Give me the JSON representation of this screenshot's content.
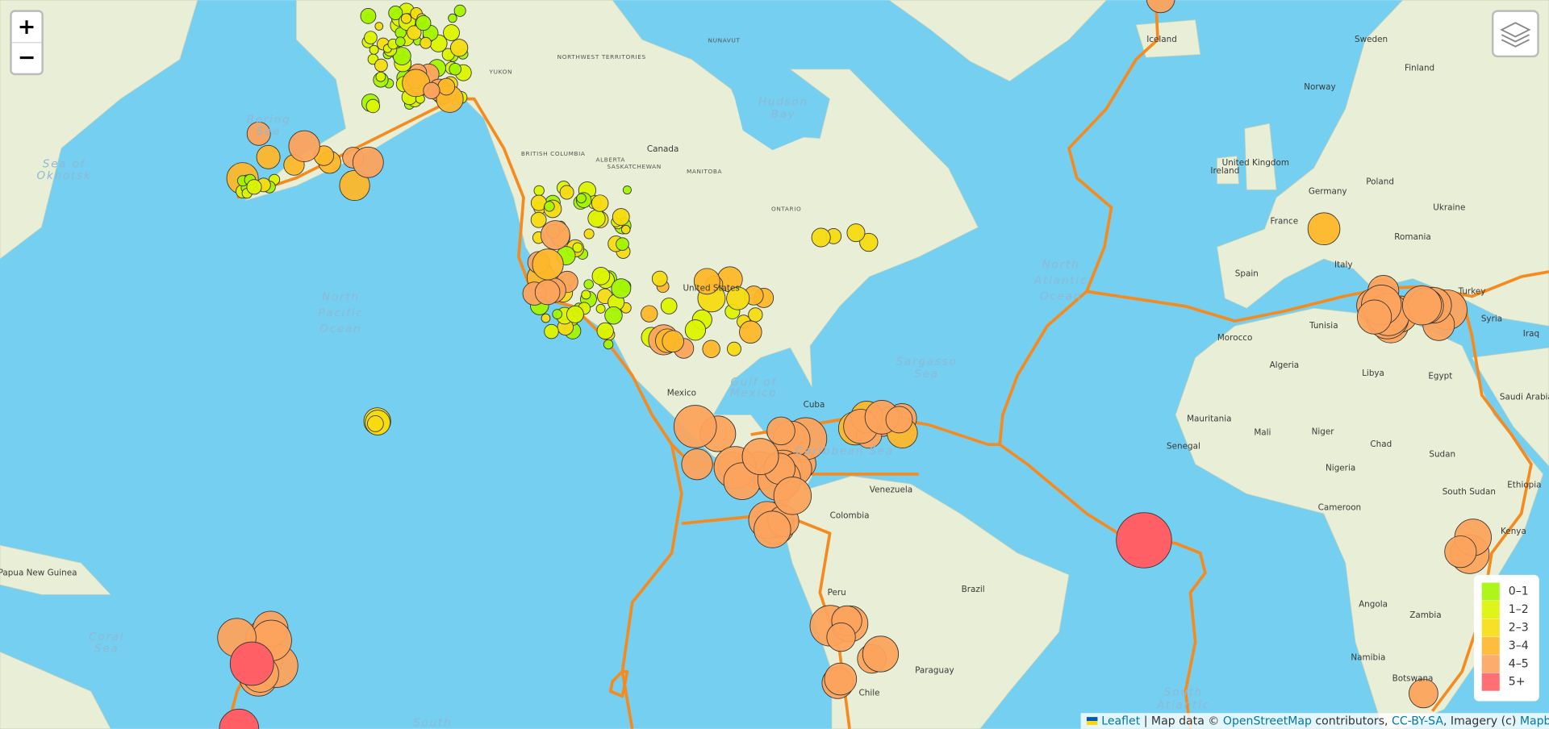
{
  "controls": {
    "zoom_in": "+",
    "zoom_out": "−"
  },
  "legend": {
    "items": [
      {
        "label": "0–1",
        "color": "#a3f600"
      },
      {
        "label": "1–2",
        "color": "#dcf400"
      },
      {
        "label": "2–3",
        "color": "#f7db11"
      },
      {
        "label": "3–4",
        "color": "#fdb72a"
      },
      {
        "label": "4–5",
        "color": "#fca35d"
      },
      {
        "label": "5+",
        "color": "#ff5f65"
      }
    ]
  },
  "attribution": [
    "Leaflet",
    " | Map data © ",
    "OpenStreetMap",
    " contributors, ",
    "CC-BY-SA",
    ", Imagery (c) ",
    "Mapbox"
  ],
  "countries": [
    "Canada",
    "United States",
    "Mexico",
    "Cuba",
    "Venezuela",
    "Colombia",
    "Brazil",
    "Peru",
    "Paraguay",
    "Chile",
    "Iceland",
    "Norway",
    "Sweden",
    "Finland",
    "Ireland",
    "United Kingdom",
    "France",
    "Spain",
    "Germany",
    "Poland",
    "Ukraine",
    "Romania",
    "Turkey",
    "Italy",
    "Morocco",
    "Algeria",
    "Libya",
    "Egypt",
    "Tunisia",
    "Mauritania",
    "Mali",
    "Niger",
    "Chad",
    "Sudan",
    "Saudi Arabia",
    "Senegal",
    "Nigeria",
    "South Sudan",
    "Ethiopia",
    "Cameroon",
    "Kenya",
    "Angola",
    "Zambia",
    "Namibia",
    "Botswana",
    "Syria",
    "Iraq",
    "Papua New Guinea",
    "NUNAVUT",
    "NORTHWEST TERRITORIES",
    "YUKON",
    "ALBERTA",
    "BRITISH COLUMBIA",
    "SASKATCHEWAN",
    "MANITOBA",
    "ONTARIO"
  ],
  "water": [
    "North",
    "Pacific",
    "Ocean",
    "North",
    "Atlantic",
    "Ocean",
    "Caribbean Sea",
    "Sargasso",
    "Sea",
    "Bering",
    "Sea",
    "Hudson",
    "Bay",
    "Coral",
    "Sea",
    "Sea of",
    "Okhotsk",
    "South",
    "South",
    "Atlantic",
    "Gulf of",
    "Mexico"
  ]
}
